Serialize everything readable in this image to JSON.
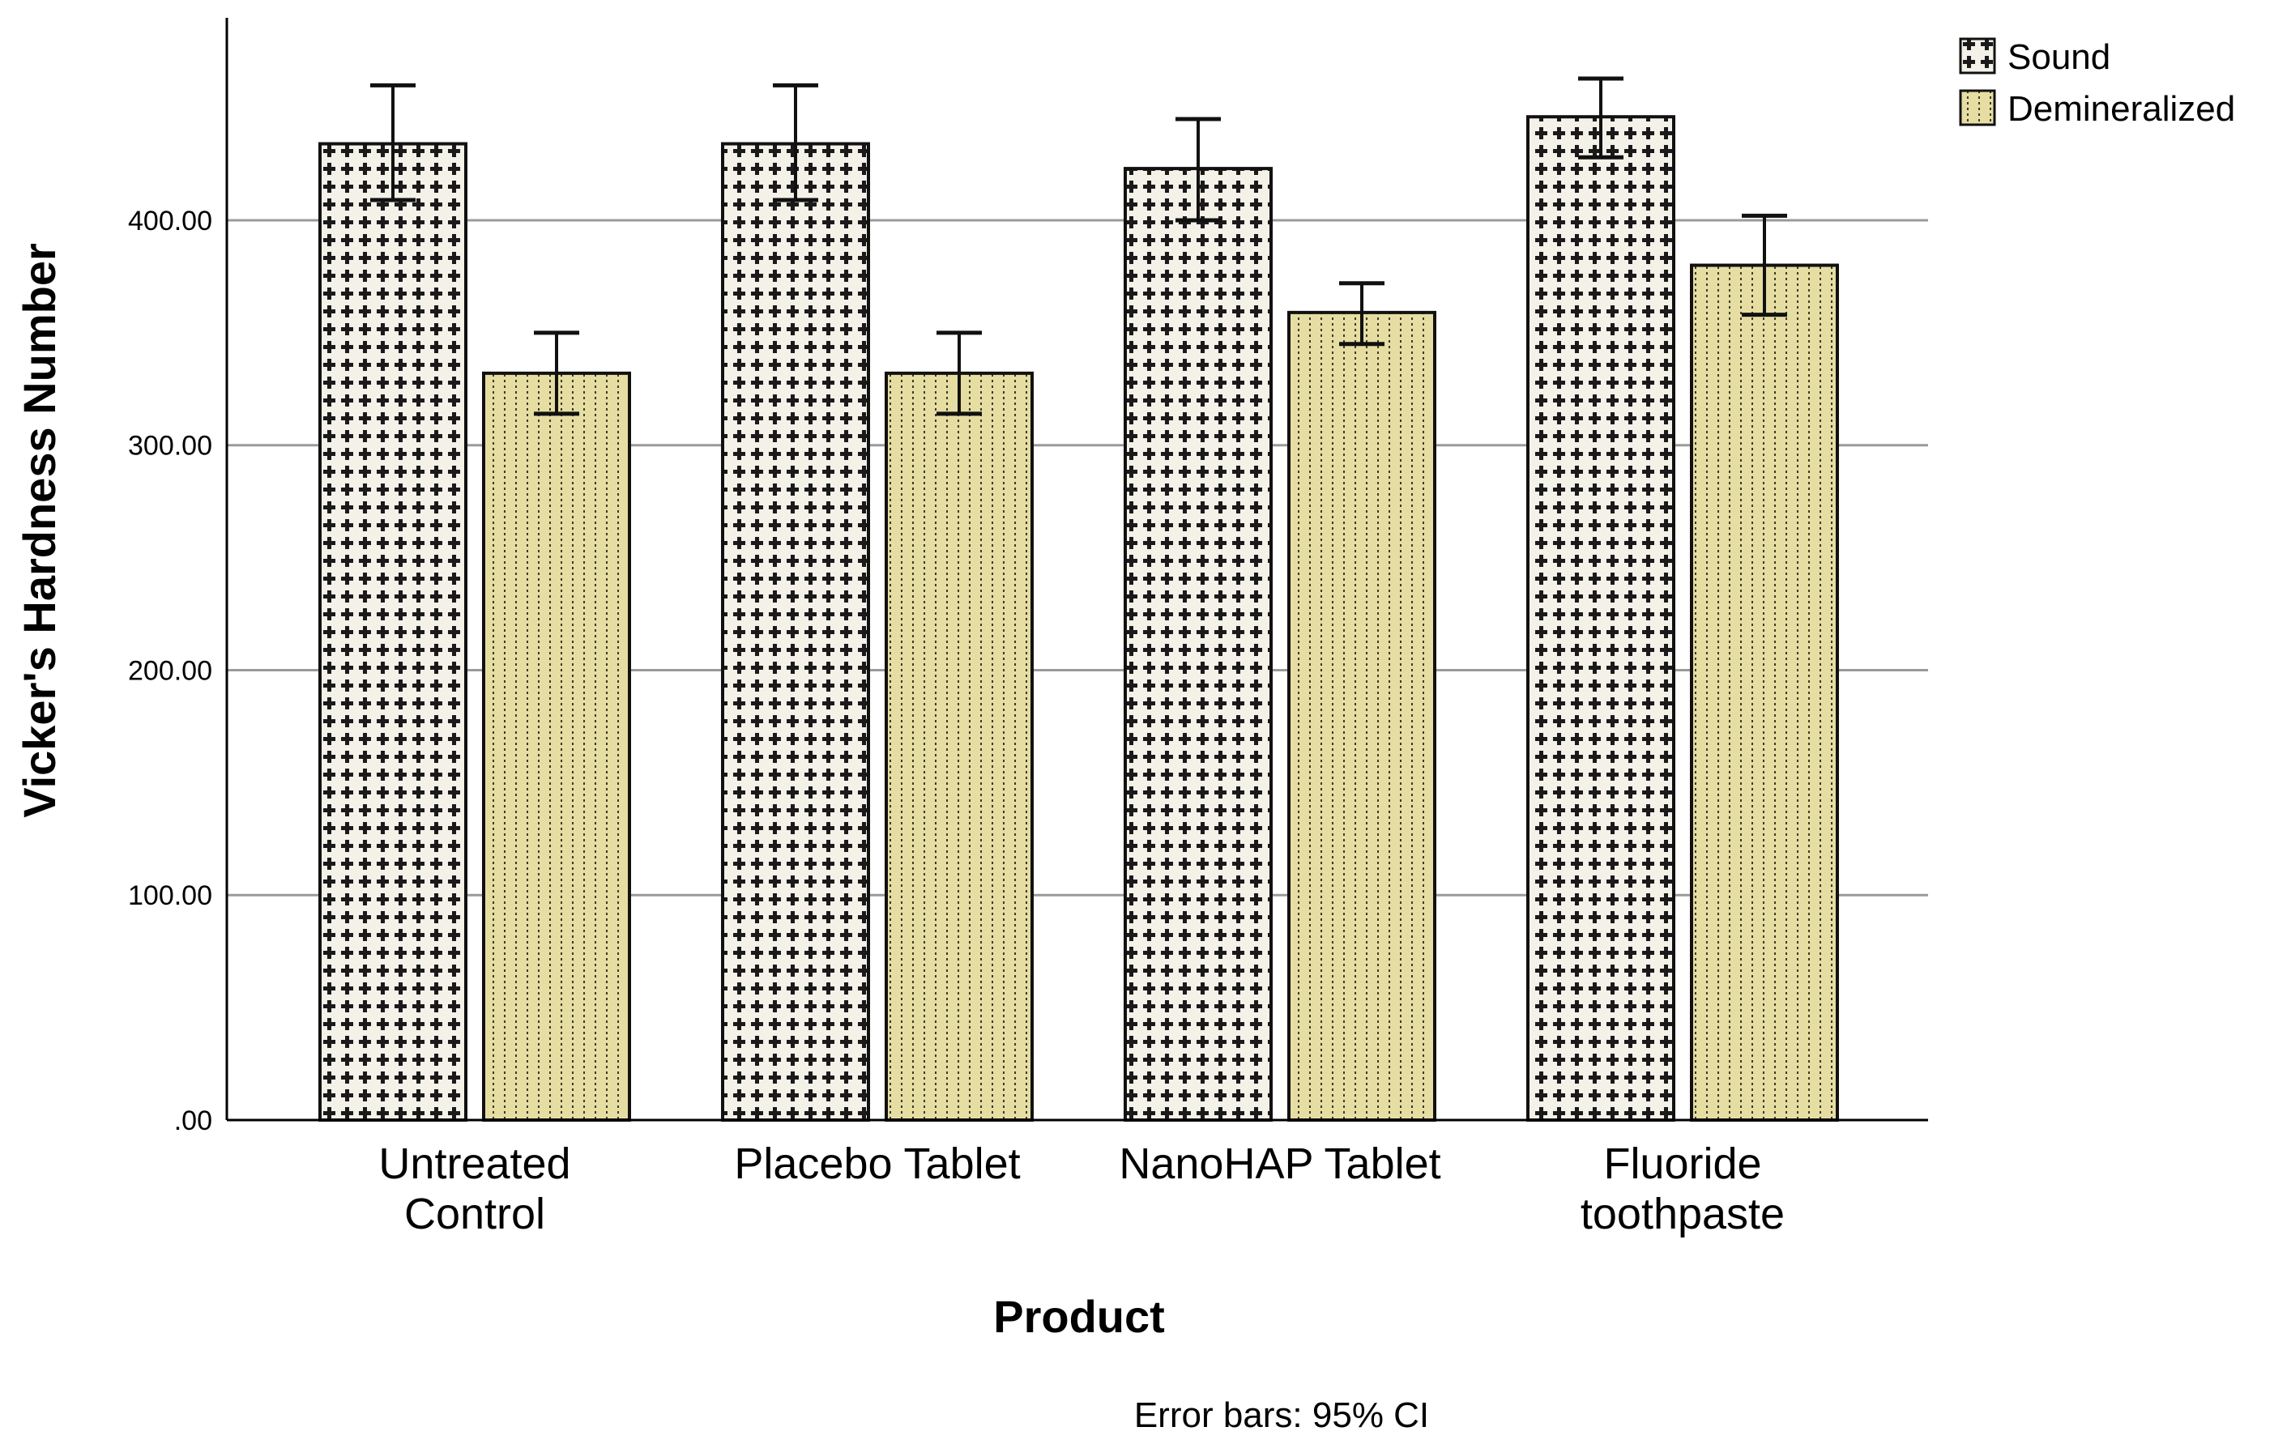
{
  "chart_data": {
    "type": "bar",
    "title": "",
    "xlabel": "Product",
    "ylabel": "Vicker's Hardness Number",
    "ylim": [
      0,
      490
    ],
    "yticks": [
      0,
      100,
      200,
      300,
      400
    ],
    "ytick_labels": [
      ".00",
      "100.00",
      "200.00",
      "300.00",
      "400.00"
    ],
    "grid": true,
    "legend_position": "top-right",
    "categories": [
      [
        "Untreated",
        "Control"
      ],
      [
        "Placebo Tablet"
      ],
      [
        "NanoHAP Tablet"
      ],
      [
        "Fluoride",
        "toothpaste"
      ]
    ],
    "series": [
      {
        "name": "Sound",
        "color": "#f2efe6",
        "pattern": "cross",
        "values": [
          434,
          434,
          423,
          446
        ],
        "ci_low": [
          409,
          409,
          400,
          428
        ],
        "ci_high": [
          460,
          460,
          445,
          463
        ]
      },
      {
        "name": "Demineralized",
        "color": "#e6dda0",
        "pattern": "dots",
        "values": [
          332,
          332,
          359,
          380
        ],
        "ci_low": [
          314,
          314,
          345,
          358
        ],
        "ci_high": [
          350,
          350,
          372,
          402
        ]
      }
    ],
    "annotation": "Error bars: 95% CI"
  }
}
